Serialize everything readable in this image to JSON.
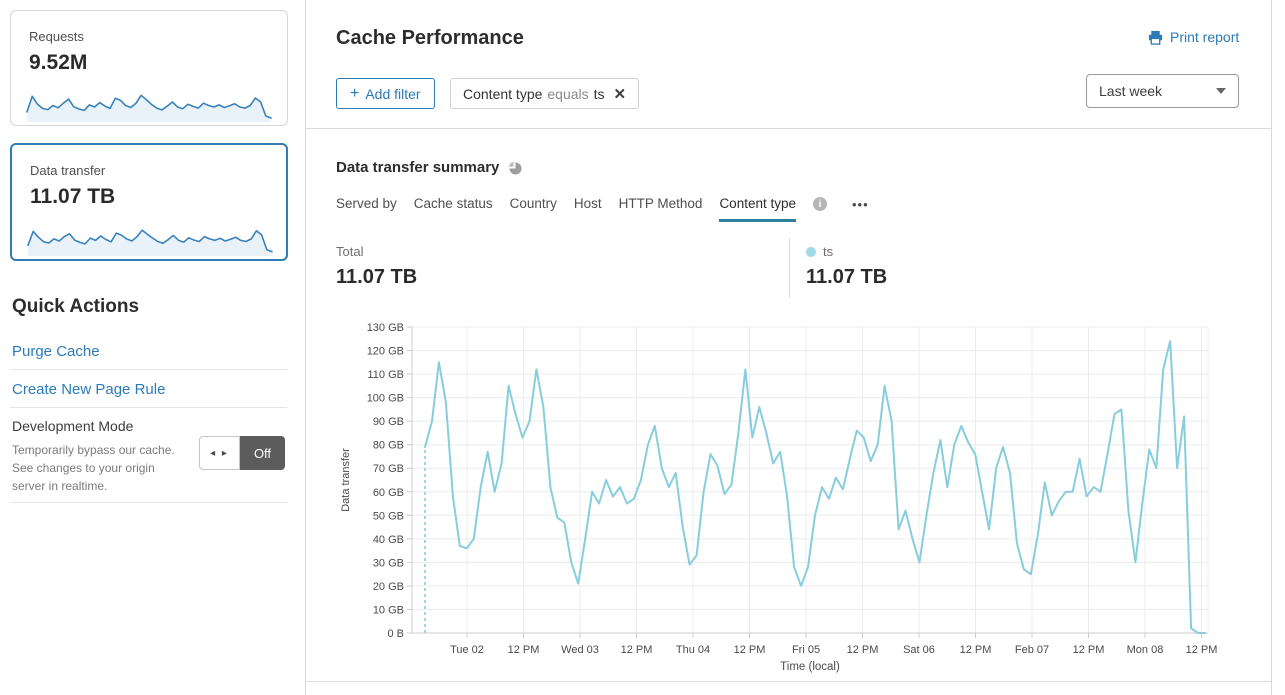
{
  "sidebar": {
    "requests_card": {
      "label": "Requests",
      "value": "9.52M",
      "sparkline": [
        28,
        82,
        55,
        40,
        36,
        50,
        42,
        58,
        72,
        46,
        38,
        33,
        52,
        45,
        60,
        48,
        40,
        75,
        68,
        50,
        43,
        58,
        85,
        70,
        53,
        41,
        35,
        48,
        62,
        45,
        39,
        54,
        47,
        41,
        58,
        50,
        45,
        52,
        43,
        49,
        56,
        45,
        41,
        50,
        76,
        62,
        14,
        7
      ]
    },
    "data_transfer_card": {
      "label": "Data transfer",
      "value": "11.07 TB",
      "selected": true,
      "sparkline": [
        30,
        78,
        58,
        42,
        38,
        52,
        45,
        60,
        70,
        48,
        40,
        35,
        55,
        47,
        62,
        50,
        42,
        72,
        65,
        52,
        45,
        60,
        82,
        68,
        55,
        43,
        37,
        50,
        64,
        47,
        41,
        56,
        48,
        43,
        60,
        52,
        47,
        54,
        45,
        51,
        58,
        47,
        43,
        52,
        80,
        66,
        15,
        8
      ]
    },
    "quick_actions": {
      "title": "Quick Actions",
      "links": [
        "Purge Cache",
        "Create New Page Rule"
      ],
      "development_mode": {
        "title": "Development Mode",
        "description": "Temporarily bypass our cache. See changes to your origin server in realtime.",
        "toggle_state": "Off",
        "toggle_arrows_icon": "◂ ▸"
      }
    }
  },
  "header": {
    "title": "Cache Performance",
    "print_label": "Print report",
    "add_filter": {
      "plus_icon": "+",
      "label": "Add filter"
    },
    "filter_chip": {
      "field": "Content type",
      "operator": "equals",
      "value": "ts",
      "close_icon": "✕"
    },
    "time_range": {
      "selected": "Last week"
    }
  },
  "summary": {
    "title": "Data transfer summary",
    "tabs": [
      {
        "label": "Served by",
        "active": false
      },
      {
        "label": "Cache status",
        "active": false
      },
      {
        "label": "Country",
        "active": false
      },
      {
        "label": "Host",
        "active": false
      },
      {
        "label": "HTTP Method",
        "active": false
      },
      {
        "label": "Content type",
        "active": true
      }
    ],
    "more_icon": "•••",
    "info_icon": "i",
    "total": {
      "label": "Total",
      "value": "11.07 TB"
    },
    "legend": {
      "series": "ts",
      "value": "11.07 TB"
    }
  },
  "chart_data": {
    "type": "line",
    "title": "Data transfer summary",
    "xlabel": "Time (local)",
    "ylabel": "Data transfer",
    "unit": "GB",
    "ylim": [
      0,
      130
    ],
    "grid": true,
    "y_tick_values": [
      0,
      10,
      20,
      30,
      40,
      50,
      60,
      70,
      80,
      90,
      100,
      110,
      120,
      130
    ],
    "y_tick_labels": [
      "0 B",
      "10 GB",
      "20 GB",
      "30 GB",
      "40 GB",
      "50 GB",
      "60 GB",
      "70 GB",
      "80 GB",
      "90 GB",
      "100 GB",
      "110 GB",
      "120 GB",
      "130 GB"
    ],
    "x_tick_labels": [
      "Tue 02",
      "12 PM",
      "Wed 03",
      "12 PM",
      "Thu 04",
      "12 PM",
      "Fri 05",
      "12 PM",
      "Sat 06",
      "12 PM",
      "Feb 07",
      "12 PM",
      "Mon 08",
      "12 PM"
    ],
    "leading_dashed_from_zero": true,
    "series": [
      {
        "name": "ts",
        "total": "11.07 TB",
        "values": [
          79,
          90,
          115,
          98,
          58,
          37,
          36,
          40,
          62,
          77,
          60,
          72,
          105,
          93,
          83,
          90,
          112,
          96,
          62,
          49,
          47,
          30,
          21,
          40,
          60,
          55,
          65,
          58,
          62,
          55,
          57,
          65,
          80,
          88,
          70,
          62,
          68,
          45,
          29,
          33,
          60,
          76,
          71,
          59,
          63,
          85,
          112,
          83,
          96,
          85,
          72,
          77,
          58,
          28,
          20,
          28,
          50,
          62,
          57,
          66,
          61,
          74,
          86,
          83,
          73,
          80,
          105,
          90,
          44,
          52,
          40,
          30,
          50,
          68,
          82,
          62,
          80,
          88,
          81,
          76,
          60,
          44,
          70,
          79,
          68,
          38,
          27,
          25,
          42,
          64,
          50,
          56,
          60,
          60,
          74,
          58,
          62,
          60,
          76,
          93,
          95,
          52,
          30,
          55,
          78,
          70,
          112,
          124,
          70,
          92,
          2,
          0,
          0
        ]
      }
    ]
  },
  "colors": {
    "accent_blue": "#2b7bb9",
    "selected_card_border": "#2e7cb8",
    "chart_line": "#88cdde",
    "legend_dot": "#a0d8e6",
    "sparkline_line": "#3a82bb",
    "sparkline_fill": "#e9f2f9",
    "tab_underline": "#2e819c",
    "toggle_off_bg": "#5c5c5c",
    "grid_line": "#ececec",
    "axis_line": "#cccccc"
  }
}
